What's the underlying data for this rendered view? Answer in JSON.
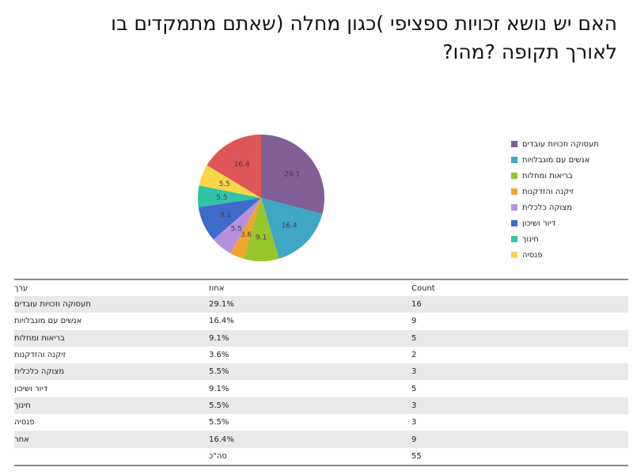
{
  "title": "האם יש נושא זכויות ספציפי )כגון מחלה (שאתם מתמקדים בו לאורך תקופה ?מהו?",
  "chart_data": {
    "type": "pie",
    "title": "האם יש נושא זכויות ספציפי )כגון מחלה (שאתם מתמקדים בו לאורך תקופה ?מהו?",
    "legend_position": "right",
    "slices": [
      {
        "name": "תעסוקה וזכויות עובדים",
        "value": 29.1,
        "color": "#7f5f95"
      },
      {
        "name": "אנשים עם מוגבלויות",
        "value": 16.4,
        "color": "#3fa6c4"
      },
      {
        "name": "בריאות ומחלות",
        "value": 9.1,
        "color": "#98c62c"
      },
      {
        "name": "זיקנה והזדקנות",
        "value": 3.6,
        "color": "#f2a42a"
      },
      {
        "name": "מצוקה כלכלית",
        "value": 5.5,
        "color": "#b690de"
      },
      {
        "name": "דיור ושיכון",
        "value": 9.1,
        "color": "#3f6bc8"
      },
      {
        "name": "חינוך",
        "value": 5.5,
        "color": "#2fc4a6"
      },
      {
        "name": "פנסיה",
        "value": 5.5,
        "color": "#f8d64a"
      },
      {
        "name": "אחר",
        "value": 16.4,
        "color": "#de5656"
      }
    ]
  },
  "legend": [
    {
      "label": "תעסוקה וזכויות עובדים",
      "color": "#7f5f95"
    },
    {
      "label": "אנשים עם מוגבלויות",
      "color": "#3fa6c4"
    },
    {
      "label": "בריאות ומחלות",
      "color": "#98c62c"
    },
    {
      "label": "זיקנה והזדקנות",
      "color": "#f2a42a"
    },
    {
      "label": "מצוקה כלכלית",
      "color": "#b690de"
    },
    {
      "label": "דיור ושיכון",
      "color": "#3f6bc8"
    },
    {
      "label": "חינוך",
      "color": "#2fc4a6"
    },
    {
      "label": "פנסיה",
      "color": "#f8d64a"
    }
  ],
  "table": {
    "headers": [
      "ערך",
      "אחוז",
      "Count"
    ],
    "rows": [
      [
        "תעסוקה וזכויות עובדים",
        "29.1%",
        "16"
      ],
      [
        "אנשים עם מוגבלויות",
        "16.4%",
        "9"
      ],
      [
        "בריאות ומחלות",
        "9.1%",
        "5"
      ],
      [
        "זיקנה והזדקנות",
        "3.6%",
        "2"
      ],
      [
        "מצוקה כלכלית",
        "5.5%",
        "3"
      ],
      [
        "דיור ושיכון",
        "9.1%",
        "5"
      ],
      [
        "חינוך",
        "5.5%",
        "3"
      ],
      [
        "פנסיה",
        "5.5%",
        "3"
      ],
      [
        "אחר",
        "16.4%",
        "9"
      ]
    ],
    "total": [
      "",
      "סה\"כ",
      "55"
    ]
  }
}
